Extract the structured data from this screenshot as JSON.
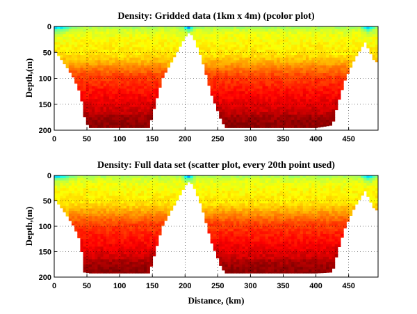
{
  "chart_data": [
    {
      "type": "heatmap",
      "title": "Density: Gridded data (1km x 4m) (pcolor plot)",
      "xlabel": "",
      "ylabel": "Depth,(m)",
      "xlim": [
        0,
        495
      ],
      "ylim": [
        200,
        0
      ],
      "xticks": [
        0,
        50,
        100,
        150,
        200,
        250,
        300,
        350,
        400,
        450
      ],
      "yticks": [
        0,
        50,
        100,
        150,
        200
      ],
      "grid": true,
      "colormap": "jet",
      "colors": {
        "shallow": "#1e90ff",
        "mid": "#ffff00",
        "deep": "#8b0000"
      },
      "bottom_profile": {
        "x": [
          0,
          10,
          20,
          30,
          40,
          48,
          55,
          100,
          145,
          150,
          165,
          185,
          200,
          206,
          212,
          225,
          240,
          255,
          262,
          300,
          400,
          425,
          433,
          445,
          460,
          475,
          483,
          490,
          495
        ],
        "depth": [
          45,
          62,
          80,
          100,
          130,
          185,
          195,
          195,
          195,
          170,
          100,
          55,
          20,
          12,
          18,
          60,
          130,
          180,
          195,
          195,
          195,
          190,
          150,
          100,
          60,
          30,
          50,
          68,
          68
        ]
      }
    },
    {
      "type": "scatter",
      "title": "Density: Full data set (scatter plot, every 20th point used)",
      "xlabel": "Distance, (km)",
      "ylabel": "Depth,(m)",
      "xlim": [
        0,
        495
      ],
      "ylim": [
        200,
        0
      ],
      "xticks": [
        0,
        50,
        100,
        150,
        200,
        250,
        300,
        350,
        400,
        450
      ],
      "yticks": [
        0,
        50,
        100,
        150,
        200
      ],
      "grid": true,
      "colormap": "jet",
      "colors": {
        "shallow": "#1e90ff",
        "mid": "#ffff00",
        "deep": "#8b0000"
      },
      "bottom_profile": {
        "x": [
          0,
          10,
          20,
          30,
          40,
          46,
          55,
          100,
          145,
          150,
          165,
          185,
          200,
          206,
          212,
          225,
          240,
          255,
          262,
          300,
          400,
          425,
          433,
          445,
          460,
          475,
          483,
          490,
          495
        ],
        "depth": [
          45,
          62,
          80,
          100,
          130,
          190,
          192,
          192,
          192,
          170,
          100,
          55,
          20,
          12,
          18,
          60,
          130,
          180,
          192,
          192,
          192,
          190,
          150,
          100,
          60,
          30,
          50,
          68,
          68
        ]
      }
    }
  ]
}
